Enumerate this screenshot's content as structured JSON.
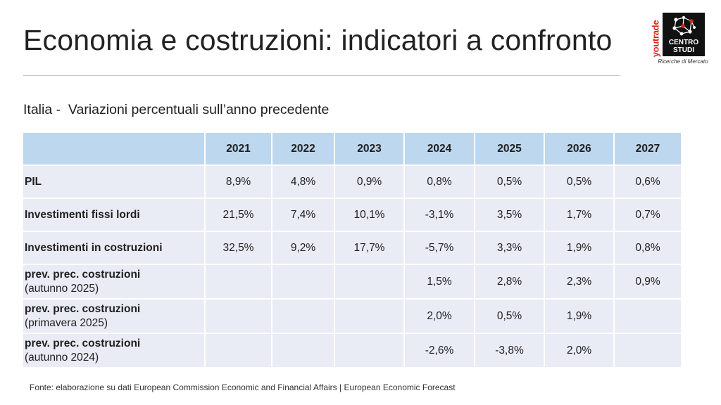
{
  "slide": {
    "title": "Economia e costruzioni: indicatori a confronto",
    "subtitle": "Italia -  Variazioni percentuali sull’anno precedente",
    "source": "Fonte: elaborazione su dati European Commission Economic and Financial Affairs | European Economic Forecast"
  },
  "logo": {
    "side_text": "youtrade",
    "line1": "CENTRO",
    "line2": "STUDI",
    "caption": "Ricerche di Mercato",
    "colors": {
      "box": "#111111",
      "accent": "#d9251c"
    }
  },
  "table": {
    "years": [
      "2021",
      "2022",
      "2023",
      "2024",
      "2025",
      "2026",
      "2027"
    ],
    "rows": {
      "pil": {
        "label": "PIL",
        "values": [
          "8,9%",
          "4,8%",
          "0,9%",
          "0,8%",
          "0,5%",
          "0,5%",
          "0,6%"
        ]
      },
      "investimenti_fissi": {
        "label": "Investimenti fissi lordi",
        "values": [
          "21,5%",
          "7,4%",
          "10,1%",
          "-3,1%",
          "3,5%",
          "1,7%",
          "0,7%"
        ]
      },
      "investimenti_costruzioni": {
        "label": "Investimenti in costruzioni",
        "values": [
          "32,5%",
          "9,2%",
          "17,7%",
          "-5,7%",
          "3,3%",
          "1,9%",
          "0,8%"
        ]
      },
      "prev_aut_2025": {
        "label": "prev. prec. costruzioni",
        "sublabel": "(autunno 2025)",
        "values": [
          "",
          "",
          "",
          "1,5%",
          "2,8%",
          "2,3%",
          "0,9%"
        ]
      },
      "prev_prim_2025": {
        "label": "prev. prec. costruzioni",
        "sublabel": "(primavera 2025)",
        "values": [
          "",
          "",
          "",
          "2,0%",
          "0,5%",
          "1,9%",
          ""
        ]
      },
      "prev_aut_2024": {
        "label": "prev. prec. costruzioni",
        "sublabel": "(autunno 2024)",
        "values": [
          "",
          "",
          "",
          "-2,6%",
          "-3,8%",
          "2,0%",
          ""
        ]
      }
    },
    "colors": {
      "header_bg": "#bdd7ee",
      "row_bg": "#e9ebf5",
      "negative": "#e0201b"
    }
  }
}
